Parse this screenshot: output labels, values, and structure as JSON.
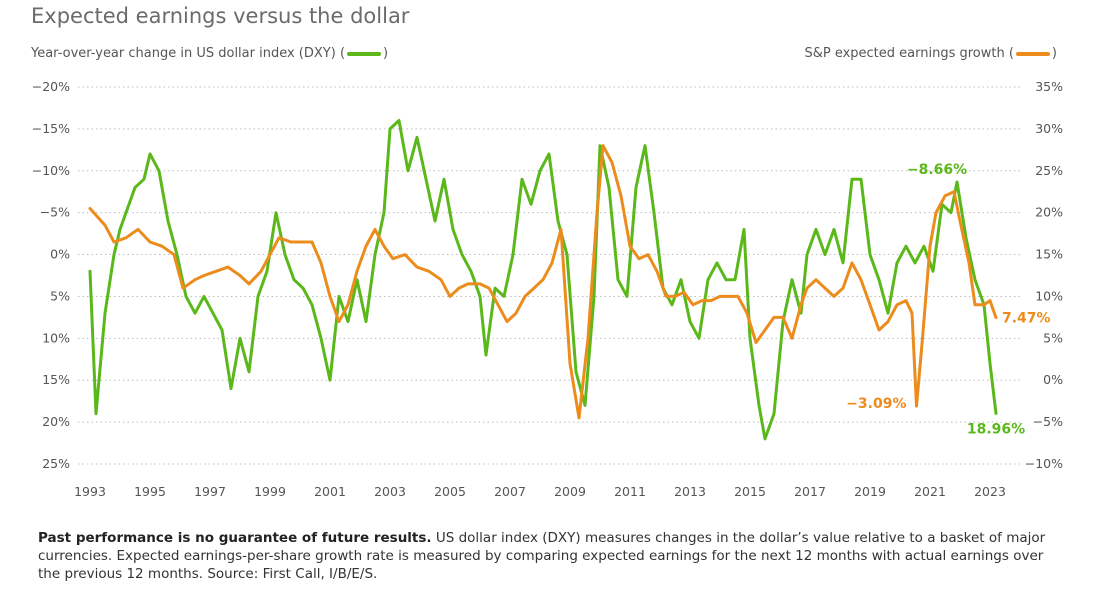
{
  "chart_data": {
    "type": "line",
    "title": "Expected earnings versus the dollar",
    "ylabel_left": "Year-over-year change in US dollar index (DXY) (",
    "ylabel_right": "S&P expected earnings growth (",
    "legend_close": ")",
    "left_axis": {
      "range": [
        25,
        -20
      ],
      "inverted": true,
      "ticks": [
        -20,
        -15,
        -10,
        -5,
        0,
        5,
        10,
        15,
        20,
        25
      ],
      "tick_labels": [
        "−20%",
        "−15%",
        "−10%",
        "−5%",
        "0%",
        "5%",
        "10%",
        "15%",
        "20%",
        "25%"
      ]
    },
    "right_axis": {
      "range": [
        -10,
        35
      ],
      "ticks": [
        35,
        30,
        25,
        20,
        15,
        10,
        5,
        0,
        -5,
        -10
      ],
      "tick_labels": [
        "35%",
        "30%",
        "25%",
        "20%",
        "15%",
        "10%",
        "5%",
        "0%",
        "−5%",
        "−10%"
      ]
    },
    "x_axis": {
      "range": [
        1992.6,
        2024.0
      ],
      "ticks": [
        1993,
        1995,
        1997,
        1999,
        2001,
        2003,
        2005,
        2007,
        2009,
        2011,
        2013,
        2015,
        2017,
        2019,
        2021,
        2023
      ],
      "tick_labels": [
        "1993",
        "1995",
        "1997",
        "1999",
        "2001",
        "2003",
        "2005",
        "2007",
        "2009",
        "2011",
        "2013",
        "2015",
        "2017",
        "2019",
        "2021",
        "2023"
      ]
    },
    "grid": "horizontal dotted",
    "series": [
      {
        "name": "Year-over-year change in US dollar index (DXY)",
        "axis": "left",
        "color": "#5bb81a",
        "points": [
          [
            1993.0,
            2
          ],
          [
            1993.2,
            19
          ],
          [
            1993.5,
            7
          ],
          [
            1993.8,
            0
          ],
          [
            1994.0,
            -3
          ],
          [
            1994.3,
            -6
          ],
          [
            1994.5,
            -8
          ],
          [
            1994.8,
            -9
          ],
          [
            1995.0,
            -12
          ],
          [
            1995.3,
            -10
          ],
          [
            1995.6,
            -4
          ],
          [
            1995.9,
            0
          ],
          [
            1996.2,
            5
          ],
          [
            1996.5,
            7
          ],
          [
            1996.8,
            5
          ],
          [
            1997.1,
            7
          ],
          [
            1997.4,
            9
          ],
          [
            1997.7,
            16
          ],
          [
            1998.0,
            10
          ],
          [
            1998.3,
            14
          ],
          [
            1998.6,
            5
          ],
          [
            1998.9,
            2
          ],
          [
            1999.2,
            -5
          ],
          [
            1999.5,
            0
          ],
          [
            1999.8,
            3
          ],
          [
            2000.1,
            4
          ],
          [
            2000.4,
            6
          ],
          [
            2000.7,
            10
          ],
          [
            2001.0,
            15
          ],
          [
            2001.3,
            5
          ],
          [
            2001.6,
            8
          ],
          [
            2001.9,
            3
          ],
          [
            2002.2,
            8
          ],
          [
            2002.5,
            0
          ],
          [
            2002.8,
            -5
          ],
          [
            2003.0,
            -15
          ],
          [
            2003.3,
            -16
          ],
          [
            2003.6,
            -10
          ],
          [
            2003.9,
            -14
          ],
          [
            2004.2,
            -9
          ],
          [
            2004.5,
            -4
          ],
          [
            2004.8,
            -9
          ],
          [
            2005.1,
            -3
          ],
          [
            2005.4,
            0
          ],
          [
            2005.7,
            2
          ],
          [
            2006.0,
            5
          ],
          [
            2006.2,
            12
          ],
          [
            2006.5,
            4
          ],
          [
            2006.8,
            5
          ],
          [
            2007.1,
            0
          ],
          [
            2007.4,
            -9
          ],
          [
            2007.7,
            -6
          ],
          [
            2008.0,
            -10
          ],
          [
            2008.3,
            -12
          ],
          [
            2008.6,
            -4
          ],
          [
            2008.9,
            0
          ],
          [
            2009.2,
            14
          ],
          [
            2009.5,
            18
          ],
          [
            2009.8,
            5
          ],
          [
            2010.0,
            -13
          ],
          [
            2010.3,
            -8
          ],
          [
            2010.6,
            3
          ],
          [
            2010.9,
            5
          ],
          [
            2011.2,
            -8
          ],
          [
            2011.5,
            -13
          ],
          [
            2011.8,
            -5
          ],
          [
            2012.1,
            4
          ],
          [
            2012.4,
            6
          ],
          [
            2012.7,
            3
          ],
          [
            2013.0,
            8
          ],
          [
            2013.3,
            10
          ],
          [
            2013.6,
            3
          ],
          [
            2013.9,
            1
          ],
          [
            2014.2,
            3
          ],
          [
            2014.5,
            3
          ],
          [
            2014.8,
            -3
          ],
          [
            2015.0,
            10
          ],
          [
            2015.3,
            18
          ],
          [
            2015.5,
            22
          ],
          [
            2015.8,
            19
          ],
          [
            2016.1,
            8
          ],
          [
            2016.4,
            3
          ],
          [
            2016.7,
            7
          ],
          [
            2016.9,
            0
          ],
          [
            2017.2,
            -3
          ],
          [
            2017.5,
            0
          ],
          [
            2017.8,
            -3
          ],
          [
            2018.1,
            1
          ],
          [
            2018.4,
            -9
          ],
          [
            2018.7,
            -9
          ],
          [
            2019.0,
            0
          ],
          [
            2019.3,
            3
          ],
          [
            2019.6,
            7
          ],
          [
            2019.9,
            1
          ],
          [
            2020.2,
            -1
          ],
          [
            2020.5,
            1
          ],
          [
            2020.8,
            -1
          ],
          [
            2021.1,
            2
          ],
          [
            2021.4,
            -6
          ],
          [
            2021.7,
            -5
          ],
          [
            2021.9,
            -8.66
          ],
          [
            2022.2,
            -2
          ],
          [
            2022.5,
            3
          ],
          [
            2022.8,
            6
          ],
          [
            2023.0,
            13
          ],
          [
            2023.2,
            18.96
          ]
        ]
      },
      {
        "name": "S&P expected earnings growth",
        "axis": "right",
        "color": "#ec8c1c",
        "points": [
          [
            1993.0,
            20.5
          ],
          [
            1993.5,
            18.5
          ],
          [
            1993.8,
            16.5
          ],
          [
            1994.2,
            17
          ],
          [
            1994.6,
            18
          ],
          [
            1995.0,
            16.5
          ],
          [
            1995.4,
            16
          ],
          [
            1995.8,
            15
          ],
          [
            1996.1,
            11
          ],
          [
            1996.5,
            12
          ],
          [
            1996.8,
            12.5
          ],
          [
            1997.2,
            13
          ],
          [
            1997.6,
            13.5
          ],
          [
            1998.0,
            12.5
          ],
          [
            1998.3,
            11.5
          ],
          [
            1998.7,
            13
          ],
          [
            1999.0,
            15
          ],
          [
            1999.3,
            17
          ],
          [
            1999.7,
            16.5
          ],
          [
            2000.1,
            16.5
          ],
          [
            2000.4,
            16.5
          ],
          [
            2000.7,
            14
          ],
          [
            2001.0,
            10
          ],
          [
            2001.3,
            7
          ],
          [
            2001.6,
            9
          ],
          [
            2001.9,
            13
          ],
          [
            2002.2,
            16
          ],
          [
            2002.5,
            18
          ],
          [
            2002.8,
            16
          ],
          [
            2003.1,
            14.5
          ],
          [
            2003.5,
            15
          ],
          [
            2003.9,
            13.5
          ],
          [
            2004.3,
            13
          ],
          [
            2004.7,
            12
          ],
          [
            2005.0,
            10
          ],
          [
            2005.3,
            11
          ],
          [
            2005.6,
            11.5
          ],
          [
            2006.0,
            11.5
          ],
          [
            2006.3,
            11
          ],
          [
            2006.6,
            9
          ],
          [
            2006.9,
            7
          ],
          [
            2007.2,
            8
          ],
          [
            2007.5,
            10
          ],
          [
            2007.8,
            11
          ],
          [
            2008.1,
            12
          ],
          [
            2008.4,
            14
          ],
          [
            2008.7,
            18
          ],
          [
            2009.0,
            2
          ],
          [
            2009.3,
            -4.5
          ],
          [
            2009.6,
            5
          ],
          [
            2009.9,
            20
          ],
          [
            2010.1,
            28
          ],
          [
            2010.4,
            26
          ],
          [
            2010.7,
            22
          ],
          [
            2011.0,
            16
          ],
          [
            2011.3,
            14.5
          ],
          [
            2011.6,
            15
          ],
          [
            2011.9,
            13
          ],
          [
            2012.2,
            10
          ],
          [
            2012.5,
            10
          ],
          [
            2012.8,
            10.5
          ],
          [
            2013.1,
            9
          ],
          [
            2013.4,
            9.5
          ],
          [
            2013.7,
            9.5
          ],
          [
            2014.0,
            10
          ],
          [
            2014.3,
            10
          ],
          [
            2014.6,
            10
          ],
          [
            2014.9,
            8
          ],
          [
            2015.2,
            4.5
          ],
          [
            2015.5,
            6
          ],
          [
            2015.8,
            7.5
          ],
          [
            2016.1,
            7.5
          ],
          [
            2016.4,
            5
          ],
          [
            2016.7,
            9
          ],
          [
            2016.9,
            11
          ],
          [
            2017.2,
            12
          ],
          [
            2017.5,
            11
          ],
          [
            2017.8,
            10
          ],
          [
            2018.1,
            11
          ],
          [
            2018.4,
            14
          ],
          [
            2018.7,
            12
          ],
          [
            2019.0,
            9
          ],
          [
            2019.3,
            6
          ],
          [
            2019.6,
            7
          ],
          [
            2019.9,
            9
          ],
          [
            2020.2,
            9.5
          ],
          [
            2020.4,
            8
          ],
          [
            2020.55,
            -3.09
          ],
          [
            2020.75,
            5
          ],
          [
            2021.0,
            16
          ],
          [
            2021.2,
            20
          ],
          [
            2021.5,
            22
          ],
          [
            2021.8,
            22.5
          ],
          [
            2022.0,
            19
          ],
          [
            2022.3,
            14
          ],
          [
            2022.5,
            9
          ],
          [
            2022.8,
            9
          ],
          [
            2023.0,
            9.5
          ],
          [
            2023.2,
            7.47
          ]
        ]
      }
    ],
    "annotations": [
      {
        "text": "−8.66%",
        "color": "#5bb81a",
        "x": 2021.9,
        "y": -8.66,
        "axis": "left"
      },
      {
        "text": "18.96%",
        "color": "#5bb81a",
        "x": 2023.2,
        "y": 18.96,
        "axis": "left"
      },
      {
        "text": "7.47%",
        "color": "#ec8c1c",
        "x": 2023.2,
        "y": 7.47,
        "axis": "right"
      },
      {
        "text": "−3.09%",
        "color": "#ec8c1c",
        "x": 2020.55,
        "y": -3.09,
        "axis": "right"
      }
    ]
  },
  "footnote": {
    "bold": "Past performance is no guarantee of future results.",
    "text": " US dollar index (DXY) measures changes in the dollar’s value relative to a basket of major currencies. Expected earnings-per-share growth rate is measured by comparing expected earnings for the next 12 months with actual earnings over the previous 12 months. Source: First Call, I/B/E/S."
  }
}
